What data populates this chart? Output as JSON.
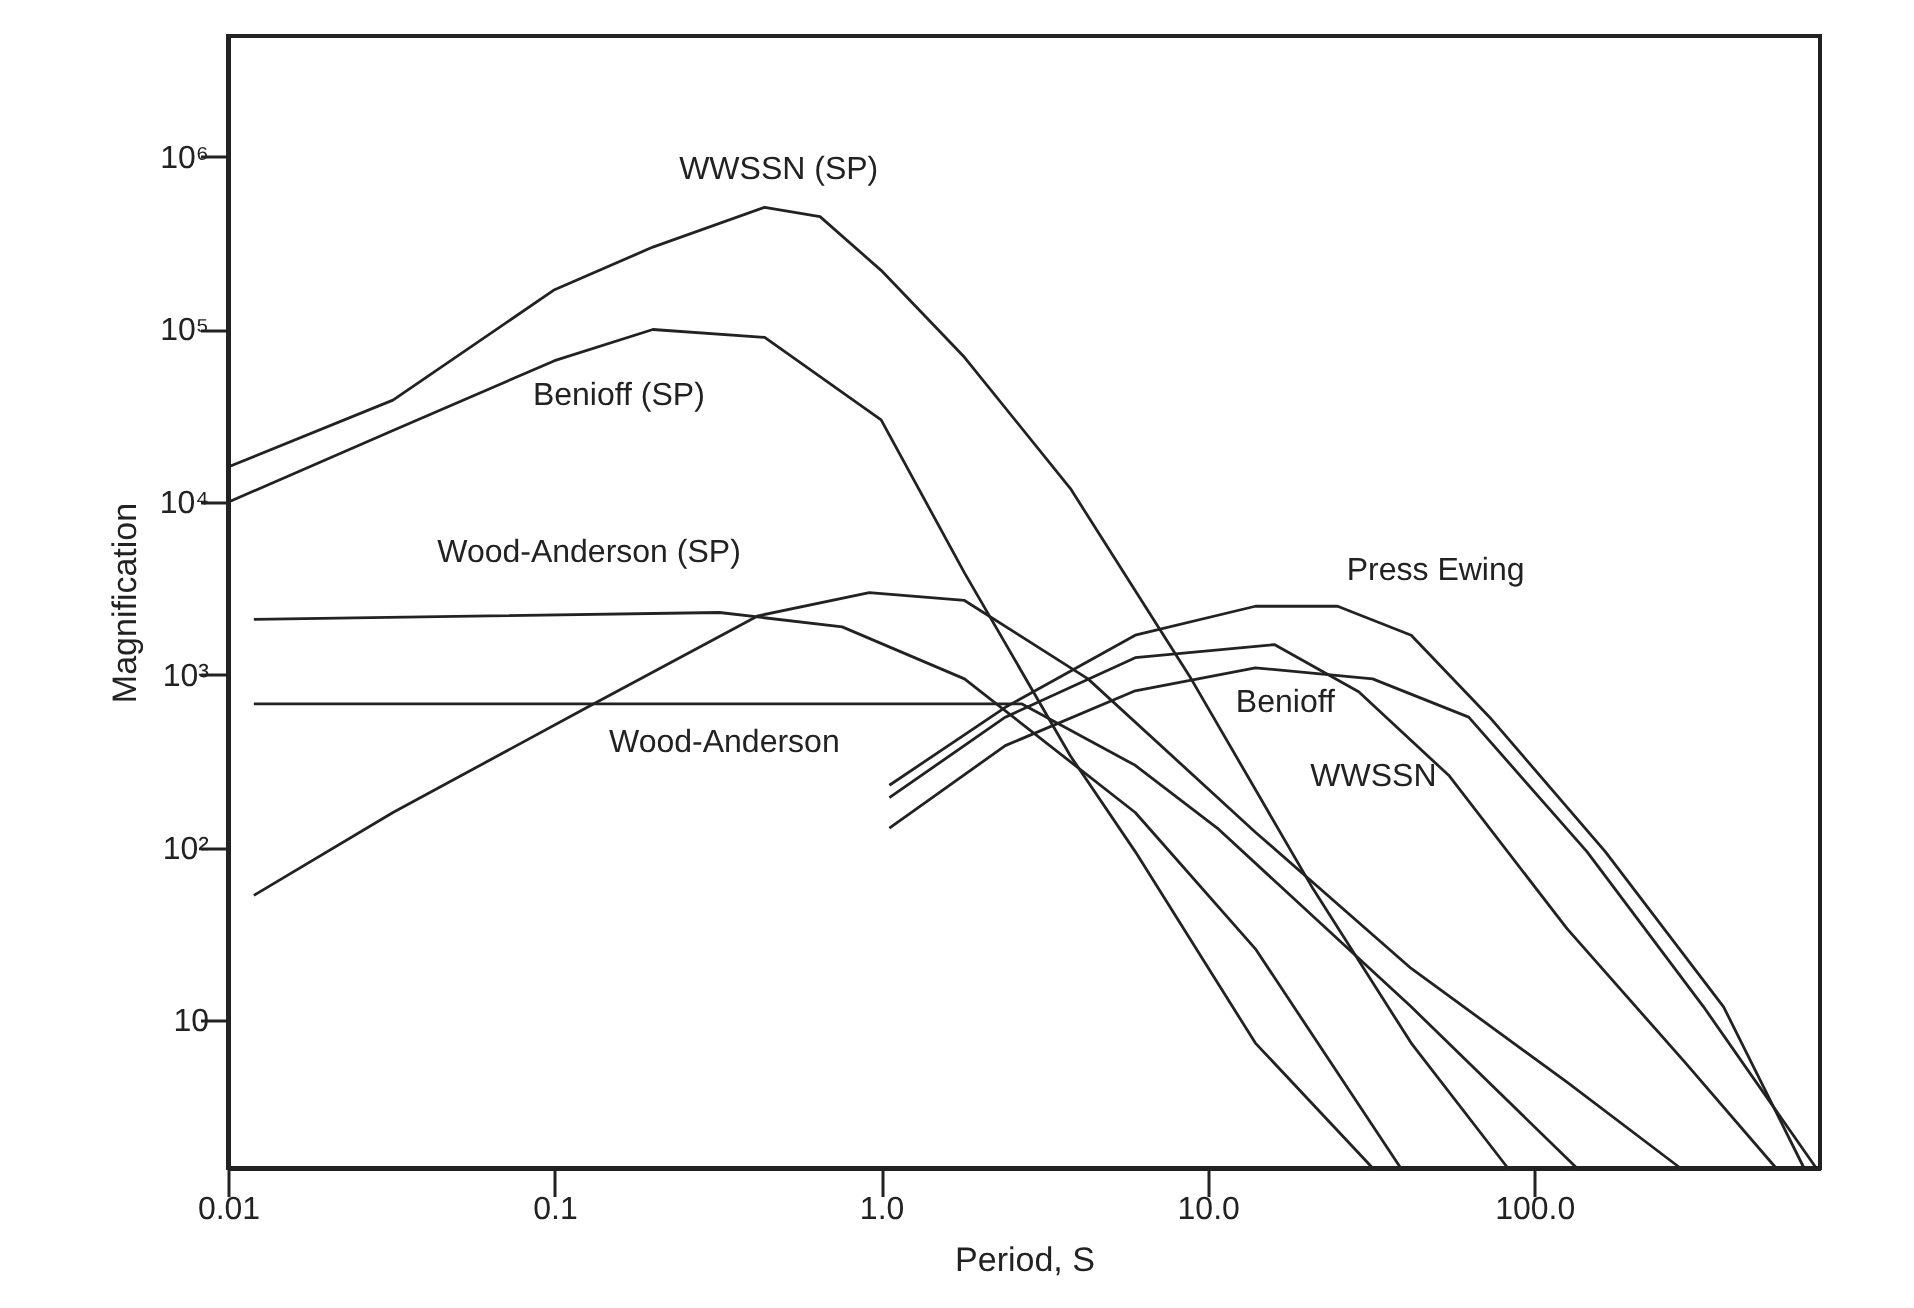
{
  "chart_data": {
    "type": "line",
    "xlabel": "Period, S",
    "ylabel": "Magnification",
    "log": "xy",
    "xlim": [
      0.01,
      750
    ],
    "ylim": [
      1.4,
      5000000
    ],
    "xticks": [
      0.01,
      0.1,
      {
        "value": 1,
        "label": "1.0"
      },
      {
        "value": 10,
        "label": "10.0"
      },
      {
        "value": 100,
        "label": "100.0"
      }
    ],
    "yticks": [
      10,
      {
        "value": 100,
        "label": "10²"
      },
      {
        "value": 1000,
        "label": "10³"
      },
      {
        "value": 10000,
        "label": "10⁴"
      },
      {
        "value": 100000,
        "label": "10⁵"
      },
      {
        "value": 1000000,
        "label": "10⁶"
      }
    ],
    "grid": false,
    "marker": "none",
    "line_style": "solid",
    "series": [
      {
        "name": "WWSSN (SP)",
        "color": "#222222",
        "x": [
          0.01,
          0.032,
          0.1,
          0.2,
          0.44,
          0.65,
          1.0,
          1.8,
          3.8,
          8.9,
          21,
          42,
          83
        ],
        "values": [
          16000,
          39000,
          170000,
          300000,
          510000,
          450000,
          220000,
          69000,
          12000,
          950,
          58,
          7.4,
          1.4
        ]
      },
      {
        "name": "Benioff (SP)",
        "color": "#222222",
        "x": [
          0.01,
          0.032,
          0.1,
          0.2,
          0.44,
          1.0,
          1.8,
          3.8,
          6,
          14,
          32
        ],
        "values": [
          10000,
          26000,
          66000,
          100000,
          90000,
          30000,
          3900,
          340,
          95,
          7.4,
          1.4
        ]
      },
      {
        "name": "Wood-Anderson (SP)",
        "color": "#222222",
        "x": [
          0.012,
          0.063,
          0.32,
          0.76,
          1.8,
          6,
          14,
          39
        ],
        "values": [
          2100,
          2200,
          2300,
          1900,
          950,
          160,
          26,
          1.4
        ]
      },
      {
        "name": "Wood-Anderson",
        "color": "#222222",
        "x": [
          0.012,
          0.3,
          2.7,
          6,
          10.7,
          42,
          135
        ],
        "values": [
          680,
          680,
          680,
          300,
          130,
          12,
          1.4
        ]
      },
      {
        "color": "#222222",
        "x": [
          0.012,
          0.032,
          0.126,
          0.42,
          0.92,
          1.8,
          4.3,
          14,
          42,
          126,
          280
        ],
        "values": [
          53,
          160,
          650,
          2200,
          3000,
          2700,
          950,
          123,
          20,
          4.4,
          1.4
        ]
      },
      {
        "name": "Press Ewing",
        "color": "#222222",
        "x": [
          1.06,
          2.4,
          6,
          14,
          25,
          42,
          73,
          165,
          380,
          670
        ],
        "values": [
          230,
          650,
          1700,
          2500,
          2500,
          1700,
          570,
          95,
          12,
          1.4
        ]
      },
      {
        "name": "WWSSN",
        "color": "#222222",
        "x": [
          1.06,
          2.4,
          6,
          16,
          29,
          55,
          126,
          290,
          550
        ],
        "values": [
          195,
          570,
          1260,
          1500,
          800,
          260,
          34,
          5.7,
          1.4
        ]
      },
      {
        "name": "Benioff",
        "color": "#222222",
        "x": [
          1.06,
          2.4,
          6,
          14,
          32,
          63,
          145,
          330,
          730
        ],
        "values": [
          130,
          390,
          810,
          1100,
          950,
          570,
          95,
          12,
          1.4
        ]
      }
    ]
  }
}
